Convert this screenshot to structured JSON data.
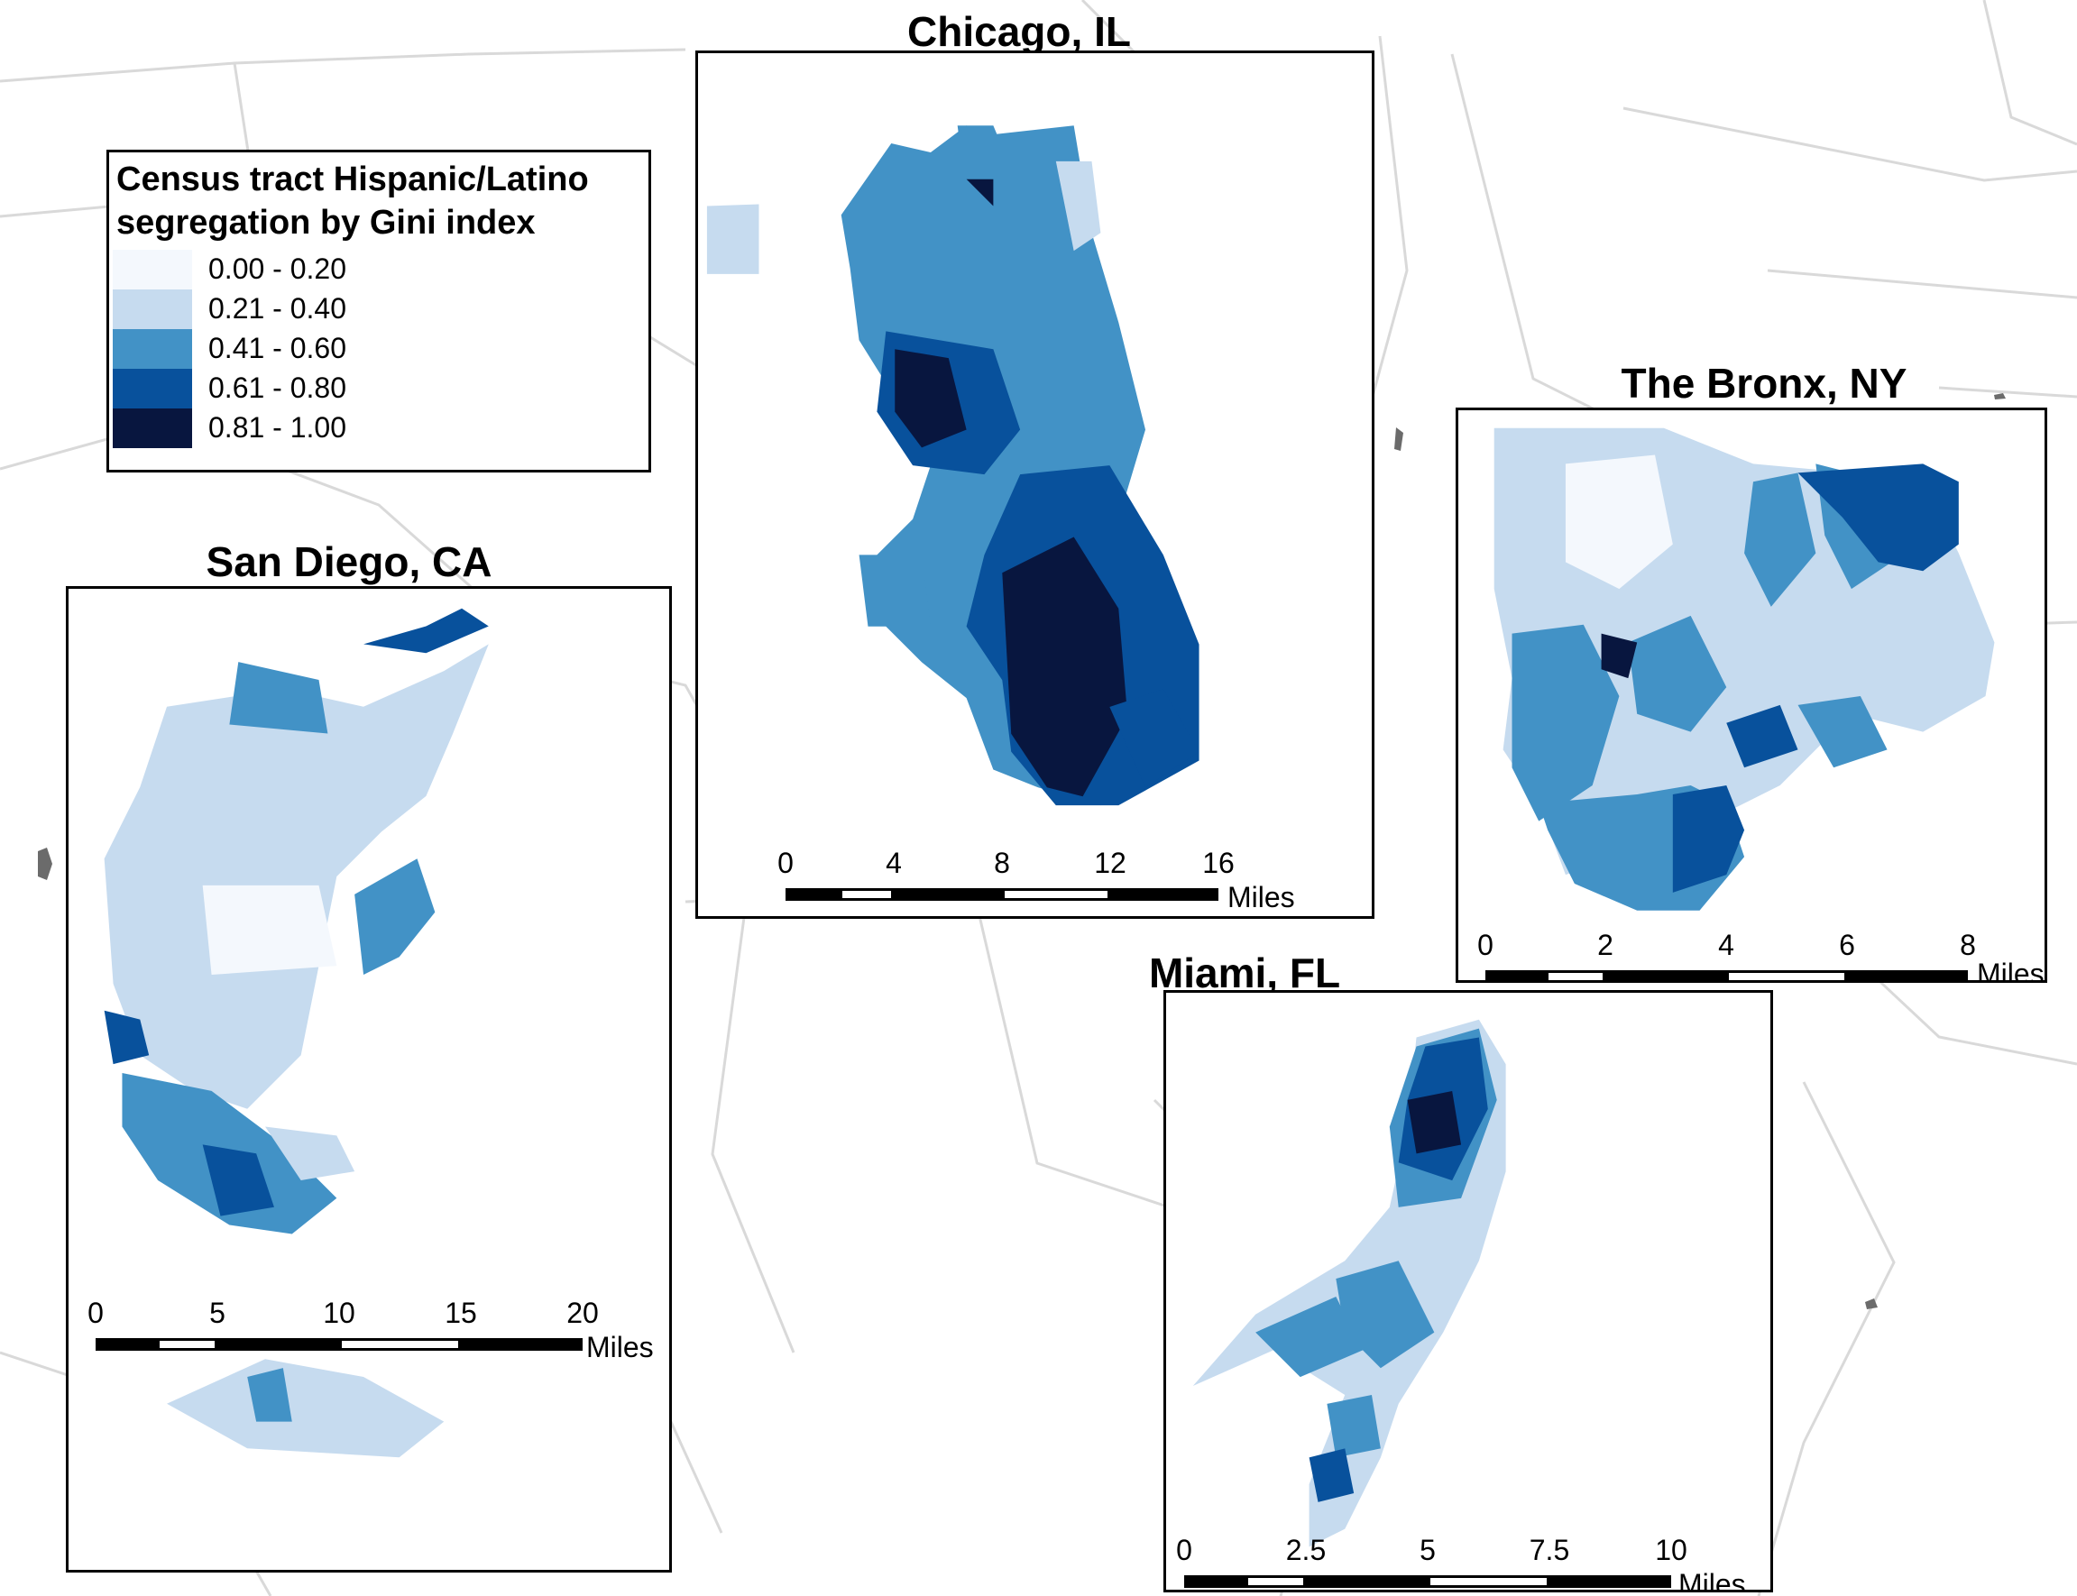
{
  "legend": {
    "title": "Census tract Hispanic/Latino segregation by Gini index",
    "classes": [
      {
        "label": "0.00 - 0.20",
        "color": "#f4f8fd"
      },
      {
        "label": "0.21 - 0.40",
        "color": "#c6dbef"
      },
      {
        "label": "0.41 - 0.60",
        "color": "#4292c6"
      },
      {
        "label": "0.61 - 0.80",
        "color": "#08519c"
      },
      {
        "label": "0.81 - 1.00",
        "color": "#08163f"
      }
    ]
  },
  "maps": {
    "chicago": {
      "title": "Chicago, IL",
      "scale_ticks": [
        "0",
        "4",
        "8",
        "12",
        "16"
      ],
      "scale_unit": "Miles"
    },
    "bronx": {
      "title": "The Bronx, NY",
      "scale_ticks": [
        "0",
        "2",
        "4",
        "6",
        "8"
      ],
      "scale_unit": "Miles"
    },
    "san_diego": {
      "title": "San Diego, CA",
      "scale_ticks": [
        "0",
        "5",
        "10",
        "15",
        "20"
      ],
      "scale_unit": "Miles"
    },
    "miami": {
      "title": "Miami, FL",
      "scale_ticks": [
        "0",
        "2.5",
        "5",
        "7.5",
        "10"
      ],
      "scale_unit": "Miles"
    }
  }
}
